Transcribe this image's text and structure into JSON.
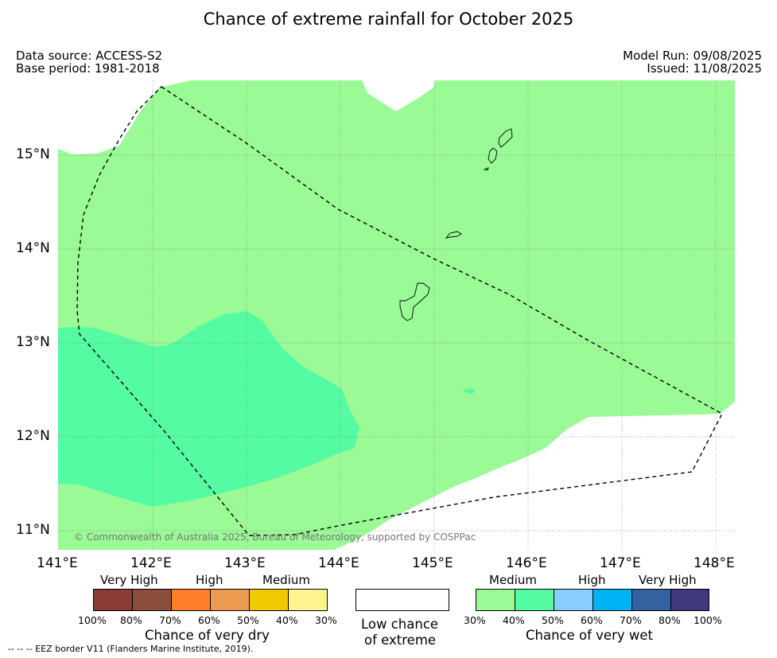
{
  "title": "Chance of extreme rainfall for October 2025",
  "data_source": "Data source: ACCESS-S2",
  "base_period": "Base period: 1981-2018",
  "model_run": "Model Run: 09/08/2025",
  "issued": "Issued: 11/08/2025",
  "map": {
    "lat_labels": [
      "15°N",
      "14°N",
      "13°N",
      "12°N",
      "11°N"
    ],
    "lon_labels": [
      "141°E",
      "142°E",
      "143°E",
      "144°E",
      "145°E",
      "146°E",
      "147°E",
      "148°E"
    ],
    "copyright": "© Commonwealth of Australia 2025, Bureau of Meteorology, supported by COSPPac",
    "colors": {
      "medium_wet": "#9afa96",
      "high_wet": "#55fba3",
      "low_chance": "#ffffff",
      "eez_border": "#000000"
    }
  },
  "legend": {
    "dry": {
      "categories": [
        "Very High",
        "High",
        "Medium"
      ],
      "colors": [
        "#8b3a35",
        "#8b4d3c",
        "#ff8029",
        "#ec9a4f",
        "#f1c900",
        "#fff48e"
      ],
      "ticks": [
        "100%",
        "80%",
        "70%",
        "60%",
        "50%",
        "40%",
        "30%"
      ],
      "caption": "Chance of very dry"
    },
    "low": {
      "line1": "Low chance",
      "line2": "of extreme",
      "color": "#ffffff"
    },
    "wet": {
      "categories": [
        "Medium",
        "High",
        "Very High"
      ],
      "colors": [
        "#9afa96",
        "#55fba3",
        "#89cdfe",
        "#00b2f3",
        "#3461a0",
        "#40397b"
      ],
      "ticks": [
        "30%",
        "40%",
        "50%",
        "60%",
        "70%",
        "80%",
        "100%"
      ],
      "caption": "Chance of very wet"
    }
  },
  "eez_note": "-- -- -- EEZ border V11 (Flanders Marine Institute, 2019)."
}
